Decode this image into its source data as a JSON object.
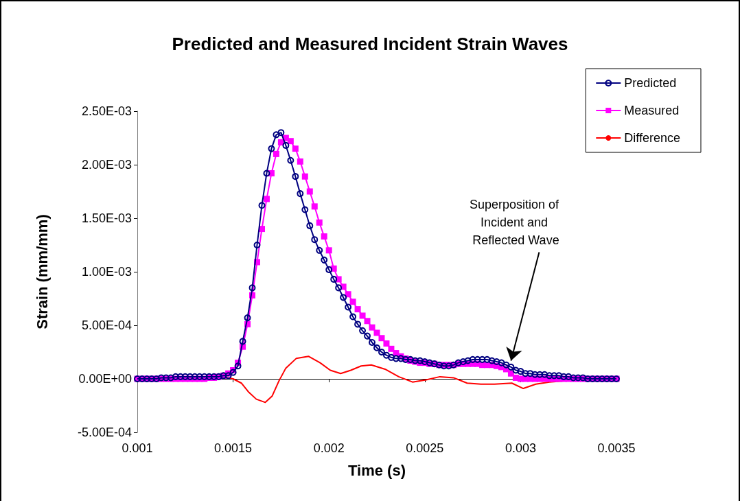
{
  "chart_data": {
    "type": "line",
    "title": "Predicted and Measured Incident Strain Waves",
    "xlabel": "Time (s)",
    "ylabel": "Strain (mm/mm)",
    "x": [
      0.001,
      0.001025,
      0.00105,
      0.001075,
      0.0011,
      0.001125,
      0.00115,
      0.001175,
      0.0012,
      0.001225,
      0.00125,
      0.001275,
      0.0013,
      0.001325,
      0.00135,
      0.001375,
      0.0014,
      0.001425,
      0.00145,
      0.001475,
      0.0015,
      0.001525,
      0.00155,
      0.001575,
      0.0016,
      0.001625,
      0.00165,
      0.001675,
      0.0017,
      0.001725,
      0.00175,
      0.001775,
      0.0018,
      0.001825,
      0.00185,
      0.001875,
      0.0019,
      0.001925,
      0.00195,
      0.001975,
      0.002,
      0.002025,
      0.00205,
      0.002075,
      0.0021,
      0.002125,
      0.00215,
      0.002175,
      0.0022,
      0.002225,
      0.00225,
      0.002275,
      0.0023,
      0.002325,
      0.00235,
      0.002375,
      0.0024,
      0.002425,
      0.00245,
      0.002475,
      0.0025,
      0.002525,
      0.00255,
      0.002575,
      0.0026,
      0.002625,
      0.00265,
      0.002675,
      0.0027,
      0.002725,
      0.00275,
      0.002775,
      0.0028,
      0.002825,
      0.00285,
      0.002875,
      0.0029,
      0.002925,
      0.00295,
      0.002975,
      0.003,
      0.003025,
      0.00305,
      0.003075,
      0.0031,
      0.003125,
      0.00315,
      0.003175,
      0.0032,
      0.003225,
      0.00325,
      0.003275,
      0.0033,
      0.003325,
      0.00335,
      0.003375,
      0.0034,
      0.003425,
      0.00345,
      0.003475,
      0.0035
    ],
    "series": [
      {
        "name": "Predicted",
        "color": "#000080",
        "marker": "circle",
        "values": [
          0,
          0,
          0,
          0,
          0,
          1e-05,
          1e-05,
          1e-05,
          2e-05,
          2e-05,
          2e-05,
          2e-05,
          2e-05,
          2e-05,
          2e-05,
          2e-05,
          2e-05,
          2e-05,
          3e-05,
          3e-05,
          6e-05,
          0.00012,
          0.00035,
          0.00057,
          0.00085,
          0.00125,
          0.00162,
          0.00192,
          0.00215,
          0.00228,
          0.0023,
          0.00218,
          0.00204,
          0.00189,
          0.00173,
          0.00158,
          0.00143,
          0.0013,
          0.0012,
          0.00111,
          0.00102,
          0.00093,
          0.00085,
          0.00076,
          0.00067,
          0.00058,
          0.00051,
          0.00045,
          0.0004,
          0.00034,
          0.00029,
          0.00025,
          0.00022,
          0.0002,
          0.00019,
          0.00019,
          0.00018,
          0.00018,
          0.00017,
          0.00017,
          0.00016,
          0.00015,
          0.00014,
          0.00013,
          0.00012,
          0.00012,
          0.00013,
          0.00015,
          0.00016,
          0.00017,
          0.00018,
          0.00018,
          0.00018,
          0.00018,
          0.00017,
          0.00016,
          0.00015,
          0.00013,
          0.00011,
          8e-05,
          7e-05,
          5e-05,
          5e-05,
          4e-05,
          4e-05,
          4e-05,
          3e-05,
          3e-05,
          3e-05,
          2e-05,
          2e-05,
          1e-05,
          1e-05,
          1e-05,
          0,
          0,
          0,
          0,
          0,
          0,
          0
        ]
      },
      {
        "name": "Measured",
        "color": "#ff00ff",
        "marker": "square",
        "values": [
          0,
          0,
          0,
          0,
          0,
          0,
          0,
          0,
          0,
          0,
          0,
          0,
          0,
          0,
          0,
          1e-05,
          1e-05,
          2e-05,
          3e-05,
          5e-05,
          8e-05,
          0.00015,
          0.0003,
          0.00051,
          0.00078,
          0.00109,
          0.0014,
          0.00168,
          0.00192,
          0.0021,
          0.00221,
          0.00225,
          0.00222,
          0.00215,
          0.00203,
          0.00189,
          0.00175,
          0.00161,
          0.00146,
          0.00133,
          0.0012,
          0.00103,
          0.00093,
          0.00086,
          0.00079,
          0.00072,
          0.00065,
          0.00059,
          0.00054,
          0.00048,
          0.00043,
          0.00038,
          0.00033,
          0.00028,
          0.00024,
          0.00021,
          0.00019,
          0.00017,
          0.00016,
          0.00015,
          0.00015,
          0.00014,
          0.00014,
          0.00013,
          0.00013,
          0.00013,
          0.00013,
          0.00014,
          0.00014,
          0.00014,
          0.00014,
          0.00014,
          0.00013,
          0.00013,
          0.00013,
          0.00012,
          0.00011,
          9e-05,
          5e-05,
          1e-05,
          0,
          0,
          0,
          0,
          0,
          0,
          0,
          0,
          0,
          0,
          0,
          0,
          0,
          0,
          0,
          0,
          0,
          0,
          0,
          0,
          0
        ]
      },
      {
        "name": "Difference",
        "color": "#ff0000",
        "marker": "none",
        "x": [
          0.001,
          0.001364,
          0.001471,
          0.0015,
          0.001543,
          0.001579,
          0.001621,
          0.001668,
          0.001704,
          0.001739,
          0.001775,
          0.001829,
          0.001893,
          0.001954,
          0.002007,
          0.002061,
          0.002114,
          0.002168,
          0.002221,
          0.002293,
          0.002364,
          0.002436,
          0.002507,
          0.002579,
          0.00265,
          0.002721,
          0.002793,
          0.002864,
          0.002954,
          0.003014,
          0.003079,
          0.00315,
          0.003293,
          0.0035
        ],
        "values": [
          0,
          0,
          1e-05,
          0,
          -4e-05,
          -0.00012,
          -0.00019,
          -0.00022,
          -0.00016,
          -2e-05,
          0.0001,
          0.00019,
          0.00021,
          0.00015,
          8e-05,
          5e-05,
          8e-05,
          0.00012,
          0.00013,
          9e-05,
          2e-05,
          -3e-05,
          -1e-05,
          2e-05,
          1e-05,
          -4e-05,
          -5e-05,
          -5e-05,
          -4e-05,
          -9e-05,
          -5e-05,
          -3e-05,
          -1e-05,
          0
        ]
      }
    ],
    "xlim": [
      0.001,
      0.0035
    ],
    "xticks": [
      0.001,
      0.0015,
      0.002,
      0.0025,
      0.003,
      0.0035
    ],
    "ylim": [
      -0.0005,
      0.0025
    ],
    "yticks": [
      {
        "value": -0.0005,
        "label": "-5.00E-04"
      },
      {
        "value": 0,
        "label": "0.00E+00"
      },
      {
        "value": 0.0005,
        "label": "5.00E-04"
      },
      {
        "value": 0.001,
        "label": "1.00E-03"
      },
      {
        "value": 0.0015,
        "label": "1.50E-03"
      },
      {
        "value": 0.002,
        "label": "2.00E-03"
      },
      {
        "value": 0.0025,
        "label": "2.50E-03"
      }
    ],
    "annotations": [
      {
        "text": "Superposition of Incident and Reflected Wave",
        "x": 0.00295,
        "y": 0.00017
      }
    ],
    "legend": "top right",
    "line_style": "solid"
  }
}
